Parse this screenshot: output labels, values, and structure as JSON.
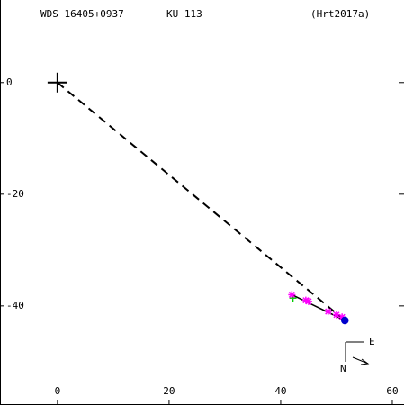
{
  "chart_data": {
    "type": "scatter",
    "title": "WDS 16405+0937",
    "subtitle": "KU  113",
    "reference": "(Hrt2017a)",
    "xlim": [
      -10.3,
      62.1
    ],
    "ylim": [
      -57.6,
      14.8
    ],
    "xticks": [
      0,
      20,
      40,
      60
    ],
    "yticks": [
      0,
      -20,
      -40
    ],
    "grid": false,
    "primary": {
      "x": 0,
      "y": 0
    },
    "series": [
      {
        "color": "#00cc00",
        "marker": "plus",
        "x": [
          42.2
        ],
        "values": [
          -38.6
        ]
      },
      {
        "color": "#ff00ff",
        "marker": "star",
        "x": [
          42,
          44.5,
          45,
          48.5,
          50,
          51
        ],
        "values": [
          -38,
          -39,
          -39.2,
          -41,
          -41.6,
          -42
        ]
      },
      {
        "color": "#0000cc",
        "marker": "dot",
        "x": [
          51.5
        ],
        "values": [
          -42.6
        ]
      }
    ],
    "path": {
      "color": "#000000",
      "x": [
        42,
        51.5
      ],
      "values": [
        -38,
        -42.6
      ]
    },
    "compass": {
      "east": "E",
      "north": "N"
    }
  }
}
